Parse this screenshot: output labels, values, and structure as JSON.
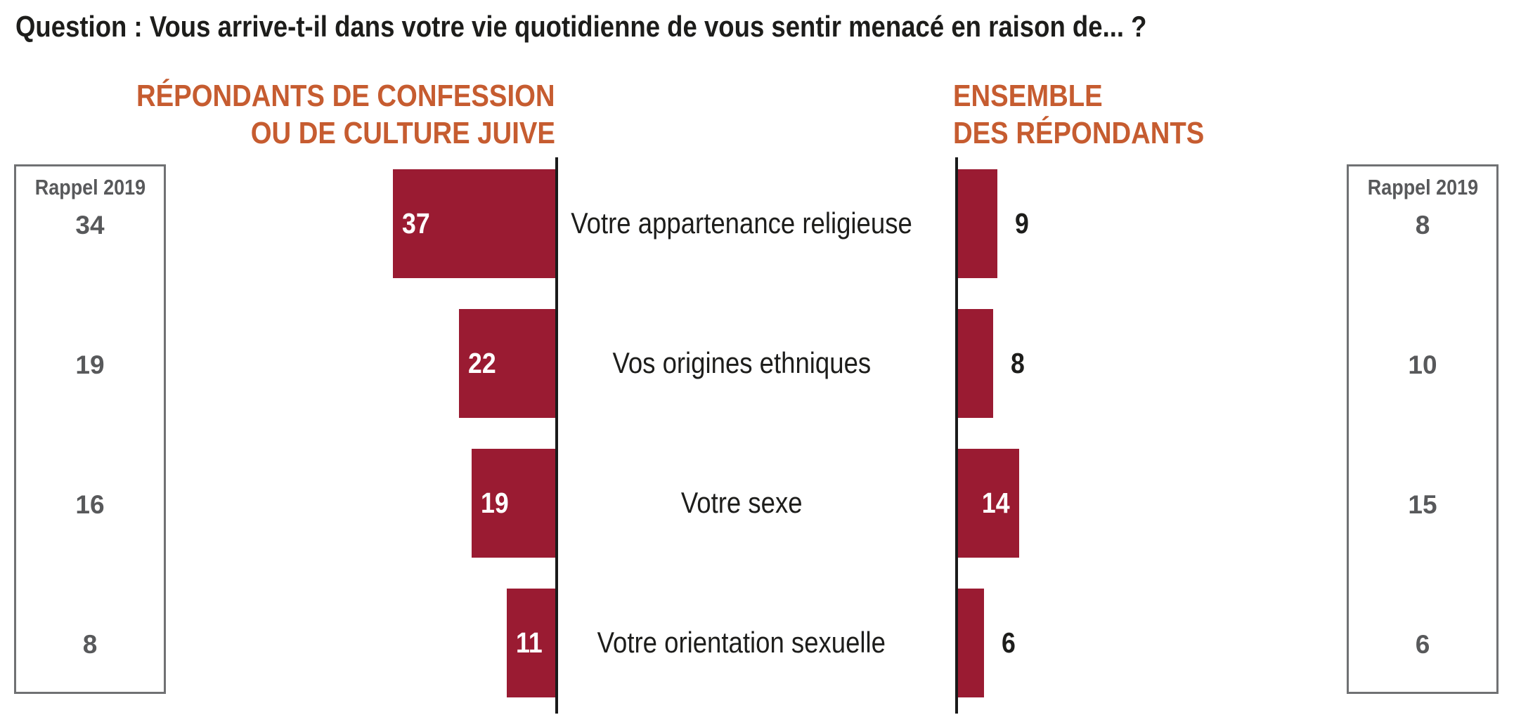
{
  "title": "Question : Vous arrive-t-il dans votre vie quotidienne de vous sentir menacé en raison de... ?",
  "panels": {
    "left": {
      "heading_line1": "RÉPONDANTS DE CONFESSION",
      "heading_line2": "OU DE CULTURE JUIVE",
      "recall_label": "Rappel 2019"
    },
    "right": {
      "heading_line1": "ENSEMBLE",
      "heading_line2": "DES RÉPONDANTS",
      "recall_label": "Rappel 2019"
    }
  },
  "colors": {
    "bar": "#9a1b32",
    "heading_accent": "#c65c30",
    "recall_text": "#58595b",
    "recall_border": "#707173",
    "axis": "#1a1a1a",
    "text": "#1d1d1b",
    "bar_label_inside": "#ffffff"
  },
  "chart_data": {
    "type": "bar",
    "orientation": "horizontal",
    "layout": "two back-to-back diverging panels; left panel bars grow leftward, right panel bars grow rightward from vertical baselines; category labels centered between panels; value labels on or beside bars; outer 'Rappel 2019' reference columns; no gridlines, no axis ticks",
    "title": "Question : Vous arrive-t-il dans votre vie quotidienne de vous sentir menacé en raison de... ?",
    "categories": [
      "Votre appartenance religieuse",
      "Vos origines ethniques",
      "Votre sexe",
      "Votre orientation sexuelle"
    ],
    "series": [
      {
        "name": "Répondants de confession ou de culture juive",
        "direction": "left",
        "values": [
          37,
          22,
          19,
          11
        ],
        "rappel_2019": [
          34,
          19,
          16,
          8
        ]
      },
      {
        "name": "Ensemble des répondants",
        "direction": "right",
        "values": [
          9,
          8,
          14,
          6
        ],
        "rappel_2019": [
          8,
          10,
          15,
          6
        ]
      }
    ]
  }
}
